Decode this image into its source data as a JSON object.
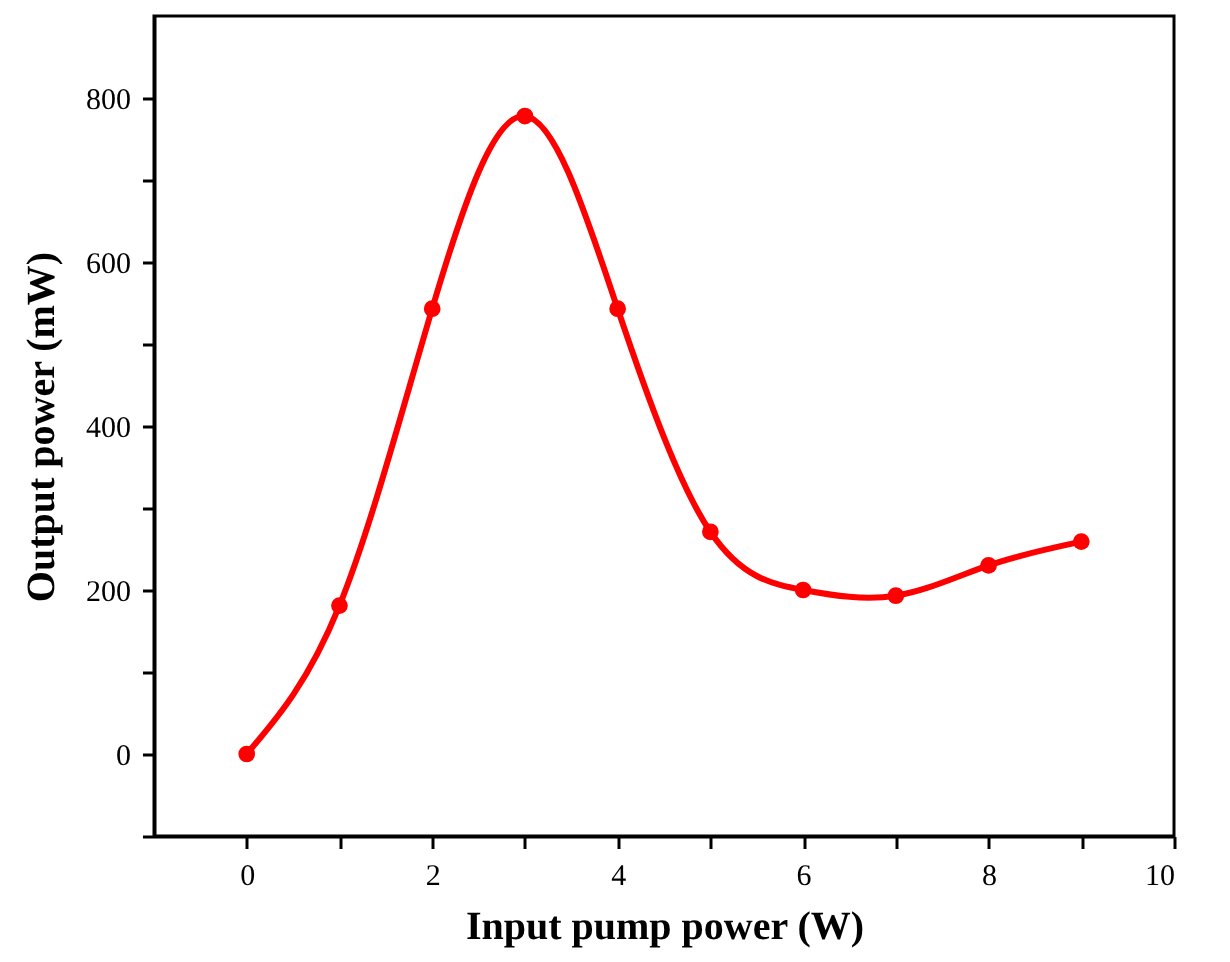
{
  "chart_data": {
    "type": "line",
    "xlabel": "Input pump power (W)",
    "ylabel": "Output power (mW)",
    "x": [
      0,
      1,
      2,
      3,
      4,
      5,
      6,
      7,
      8,
      9
    ],
    "series": [
      {
        "color": "#ff0000",
        "values": [
          0,
          181,
          543,
          778,
          543,
          271,
          200,
          193,
          230,
          259
        ]
      }
    ],
    "xlim": [
      -1,
      10
    ],
    "ylim": [
      -100,
      900
    ],
    "xticks": [
      0,
      {
        "value": 1,
        "label": null
      },
      2,
      {
        "value": 3,
        "label": null
      },
      4,
      {
        "value": 5,
        "label": null
      },
      6,
      {
        "value": 7,
        "label": null
      },
      8,
      {
        "value": 9,
        "label": null
      },
      10
    ],
    "yticks": [
      {
        "value": -100,
        "label": null
      },
      0,
      {
        "value": 100,
        "label": null
      },
      200,
      {
        "value": 300,
        "label": null
      },
      400,
      {
        "value": 500,
        "label": null
      },
      600,
      {
        "value": 700,
        "label": null
      },
      800
    ],
    "marker": "circle",
    "line_style": "solid",
    "grid": false
  }
}
